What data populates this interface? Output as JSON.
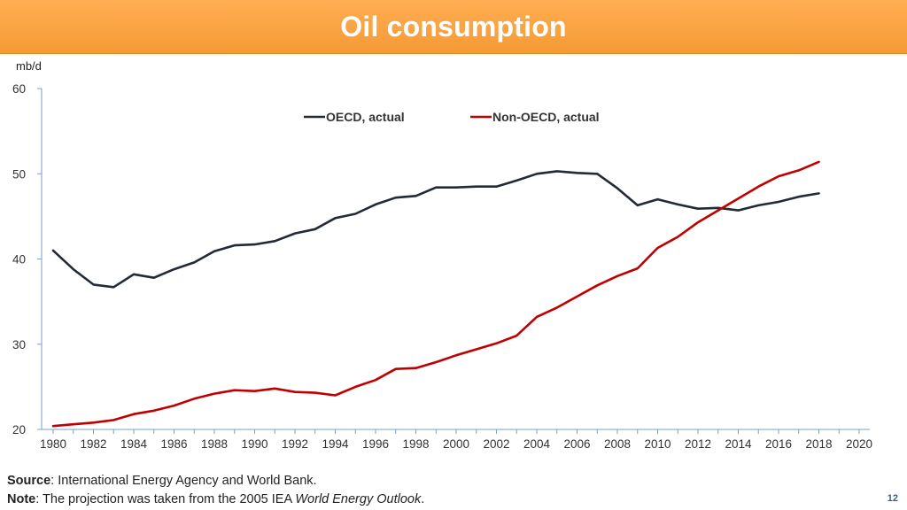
{
  "header": {
    "title": "Oil consumption"
  },
  "footer": {
    "source_label": "Source",
    "source_text": ": International Energy Agency and World Bank.",
    "note_label": "Note",
    "note_text_before": ": The projection was taken from the 2005 IEA ",
    "note_text_italic": "World Energy Outlook",
    "note_text_after": ".",
    "page_number": "12"
  },
  "colors": {
    "title_bar": "#f7a13b",
    "oecd": "#222a35",
    "non_oecd": "#c00000",
    "axis": "#7f9fc6"
  },
  "chart_data": {
    "type": "line",
    "title": "Oil consumption",
    "ylabel": "mb/d",
    "xlabel": "",
    "ylim": [
      20,
      60
    ],
    "xlim": [
      1980,
      2020
    ],
    "yticks": [
      20,
      30,
      40,
      50,
      60
    ],
    "xticks": [
      1980,
      1982,
      1984,
      1986,
      1988,
      1990,
      1992,
      1994,
      1996,
      1998,
      2000,
      2002,
      2004,
      2006,
      2008,
      2010,
      2012,
      2014,
      2016,
      2018,
      2020
    ],
    "legend_position": "top",
    "x": [
      1980,
      1981,
      1982,
      1983,
      1984,
      1985,
      1986,
      1987,
      1988,
      1989,
      1990,
      1991,
      1992,
      1993,
      1994,
      1995,
      1996,
      1997,
      1998,
      1999,
      2000,
      2001,
      2002,
      2003,
      2004,
      2005,
      2006,
      2007,
      2008,
      2009,
      2010,
      2011,
      2012,
      2013,
      2014,
      2015,
      2016,
      2017,
      2018
    ],
    "series": [
      {
        "name": "OECD, actual",
        "color": "#222a35",
        "values": [
          41.0,
          38.8,
          37.0,
          36.7,
          38.2,
          37.8,
          38.8,
          39.6,
          40.9,
          41.6,
          41.7,
          42.1,
          43.0,
          43.5,
          44.8,
          45.3,
          46.4,
          47.2,
          47.4,
          48.4,
          48.4,
          48.5,
          48.5,
          49.2,
          50.0,
          50.3,
          50.1,
          50.0,
          48.3,
          46.3,
          47.0,
          46.4,
          45.9,
          46.0,
          45.7,
          46.3,
          46.7,
          47.3,
          47.7
        ]
      },
      {
        "name": "Non-OECD, actual",
        "color": "#c00000",
        "values": [
          20.4,
          20.6,
          20.8,
          21.1,
          21.8,
          22.2,
          22.8,
          23.6,
          24.2,
          24.6,
          24.5,
          24.8,
          24.4,
          24.3,
          24.0,
          25.0,
          25.8,
          27.1,
          27.2,
          27.9,
          28.7,
          29.4,
          30.1,
          31.0,
          33.2,
          34.3,
          35.6,
          36.9,
          38.0,
          38.9,
          41.3,
          42.6,
          44.3,
          45.7,
          47.1,
          48.5,
          49.7,
          50.4,
          51.4
        ]
      }
    ]
  }
}
